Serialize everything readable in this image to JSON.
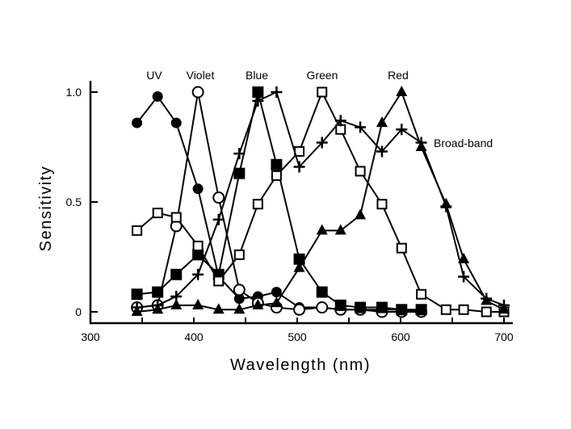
{
  "chart_data": {
    "type": "line",
    "title": "",
    "xlabel": "Wavelength (nm)",
    "ylabel": "Sensitivity",
    "xlim": [
      300,
      710
    ],
    "ylim": [
      -0.05,
      1.05
    ],
    "xticks": [
      300,
      400,
      500,
      600,
      700
    ],
    "yticks": [
      {
        "v": 0,
        "label": "0"
      },
      {
        "v": 0.5,
        "label": "0.5"
      },
      {
        "v": 1.0,
        "label": "1.0"
      }
    ],
    "grid": false,
    "x": [
      345,
      365,
      383,
      404,
      424,
      444,
      462,
      480,
      502,
      524,
      542,
      561,
      582,
      601,
      620,
      644,
      661,
      683,
      700
    ],
    "series": [
      {
        "name": "UV",
        "marker": "filled-circle",
        "values": [
          0.86,
          0.98,
          0.86,
          0.56,
          0.16,
          0.06,
          0.07,
          0.09,
          0.02,
          0.02,
          0.01,
          0.01,
          0.01,
          0.01,
          0.0,
          null,
          null,
          null,
          null
        ]
      },
      {
        "name": "Violet",
        "marker": "open-circle",
        "values": [
          0.02,
          0.03,
          0.39,
          1.0,
          0.52,
          0.1,
          0.04,
          0.02,
          0.01,
          0.02,
          0.01,
          0.01,
          0.0,
          0.0,
          0.0,
          null,
          null,
          null,
          null
        ]
      },
      {
        "name": "Blue",
        "marker": "filled-square",
        "values": [
          0.08,
          0.09,
          0.17,
          0.26,
          0.17,
          0.63,
          1.0,
          0.67,
          0.24,
          0.09,
          0.03,
          0.02,
          0.02,
          0.01,
          0.01,
          null,
          null,
          null,
          null
        ]
      },
      {
        "name": "Green",
        "marker": "open-square",
        "values": [
          0.37,
          0.45,
          0.43,
          0.3,
          0.14,
          0.26,
          0.49,
          0.62,
          0.73,
          1.0,
          0.83,
          0.64,
          0.49,
          0.29,
          0.08,
          0.01,
          0.01,
          0.0,
          0.0
        ]
      },
      {
        "name": "Red",
        "marker": "filled-triangle",
        "values": [
          0.0,
          0.01,
          0.03,
          0.03,
          0.01,
          0.01,
          0.03,
          0.04,
          0.2,
          0.37,
          0.37,
          0.44,
          0.86,
          1.0,
          0.75,
          0.49,
          0.24,
          0.05,
          0.01
        ]
      },
      {
        "name": "Broad-band",
        "marker": "plus",
        "values": [
          0.02,
          0.03,
          0.07,
          0.17,
          0.42,
          0.72,
          0.96,
          1.0,
          0.66,
          0.77,
          0.87,
          0.84,
          0.73,
          0.83,
          0.77,
          0.48,
          0.16,
          0.06,
          0.03
        ]
      }
    ],
    "annotations": [
      "UV",
      "Violet",
      "Blue",
      "Green",
      "Red",
      "Broad-band"
    ]
  }
}
